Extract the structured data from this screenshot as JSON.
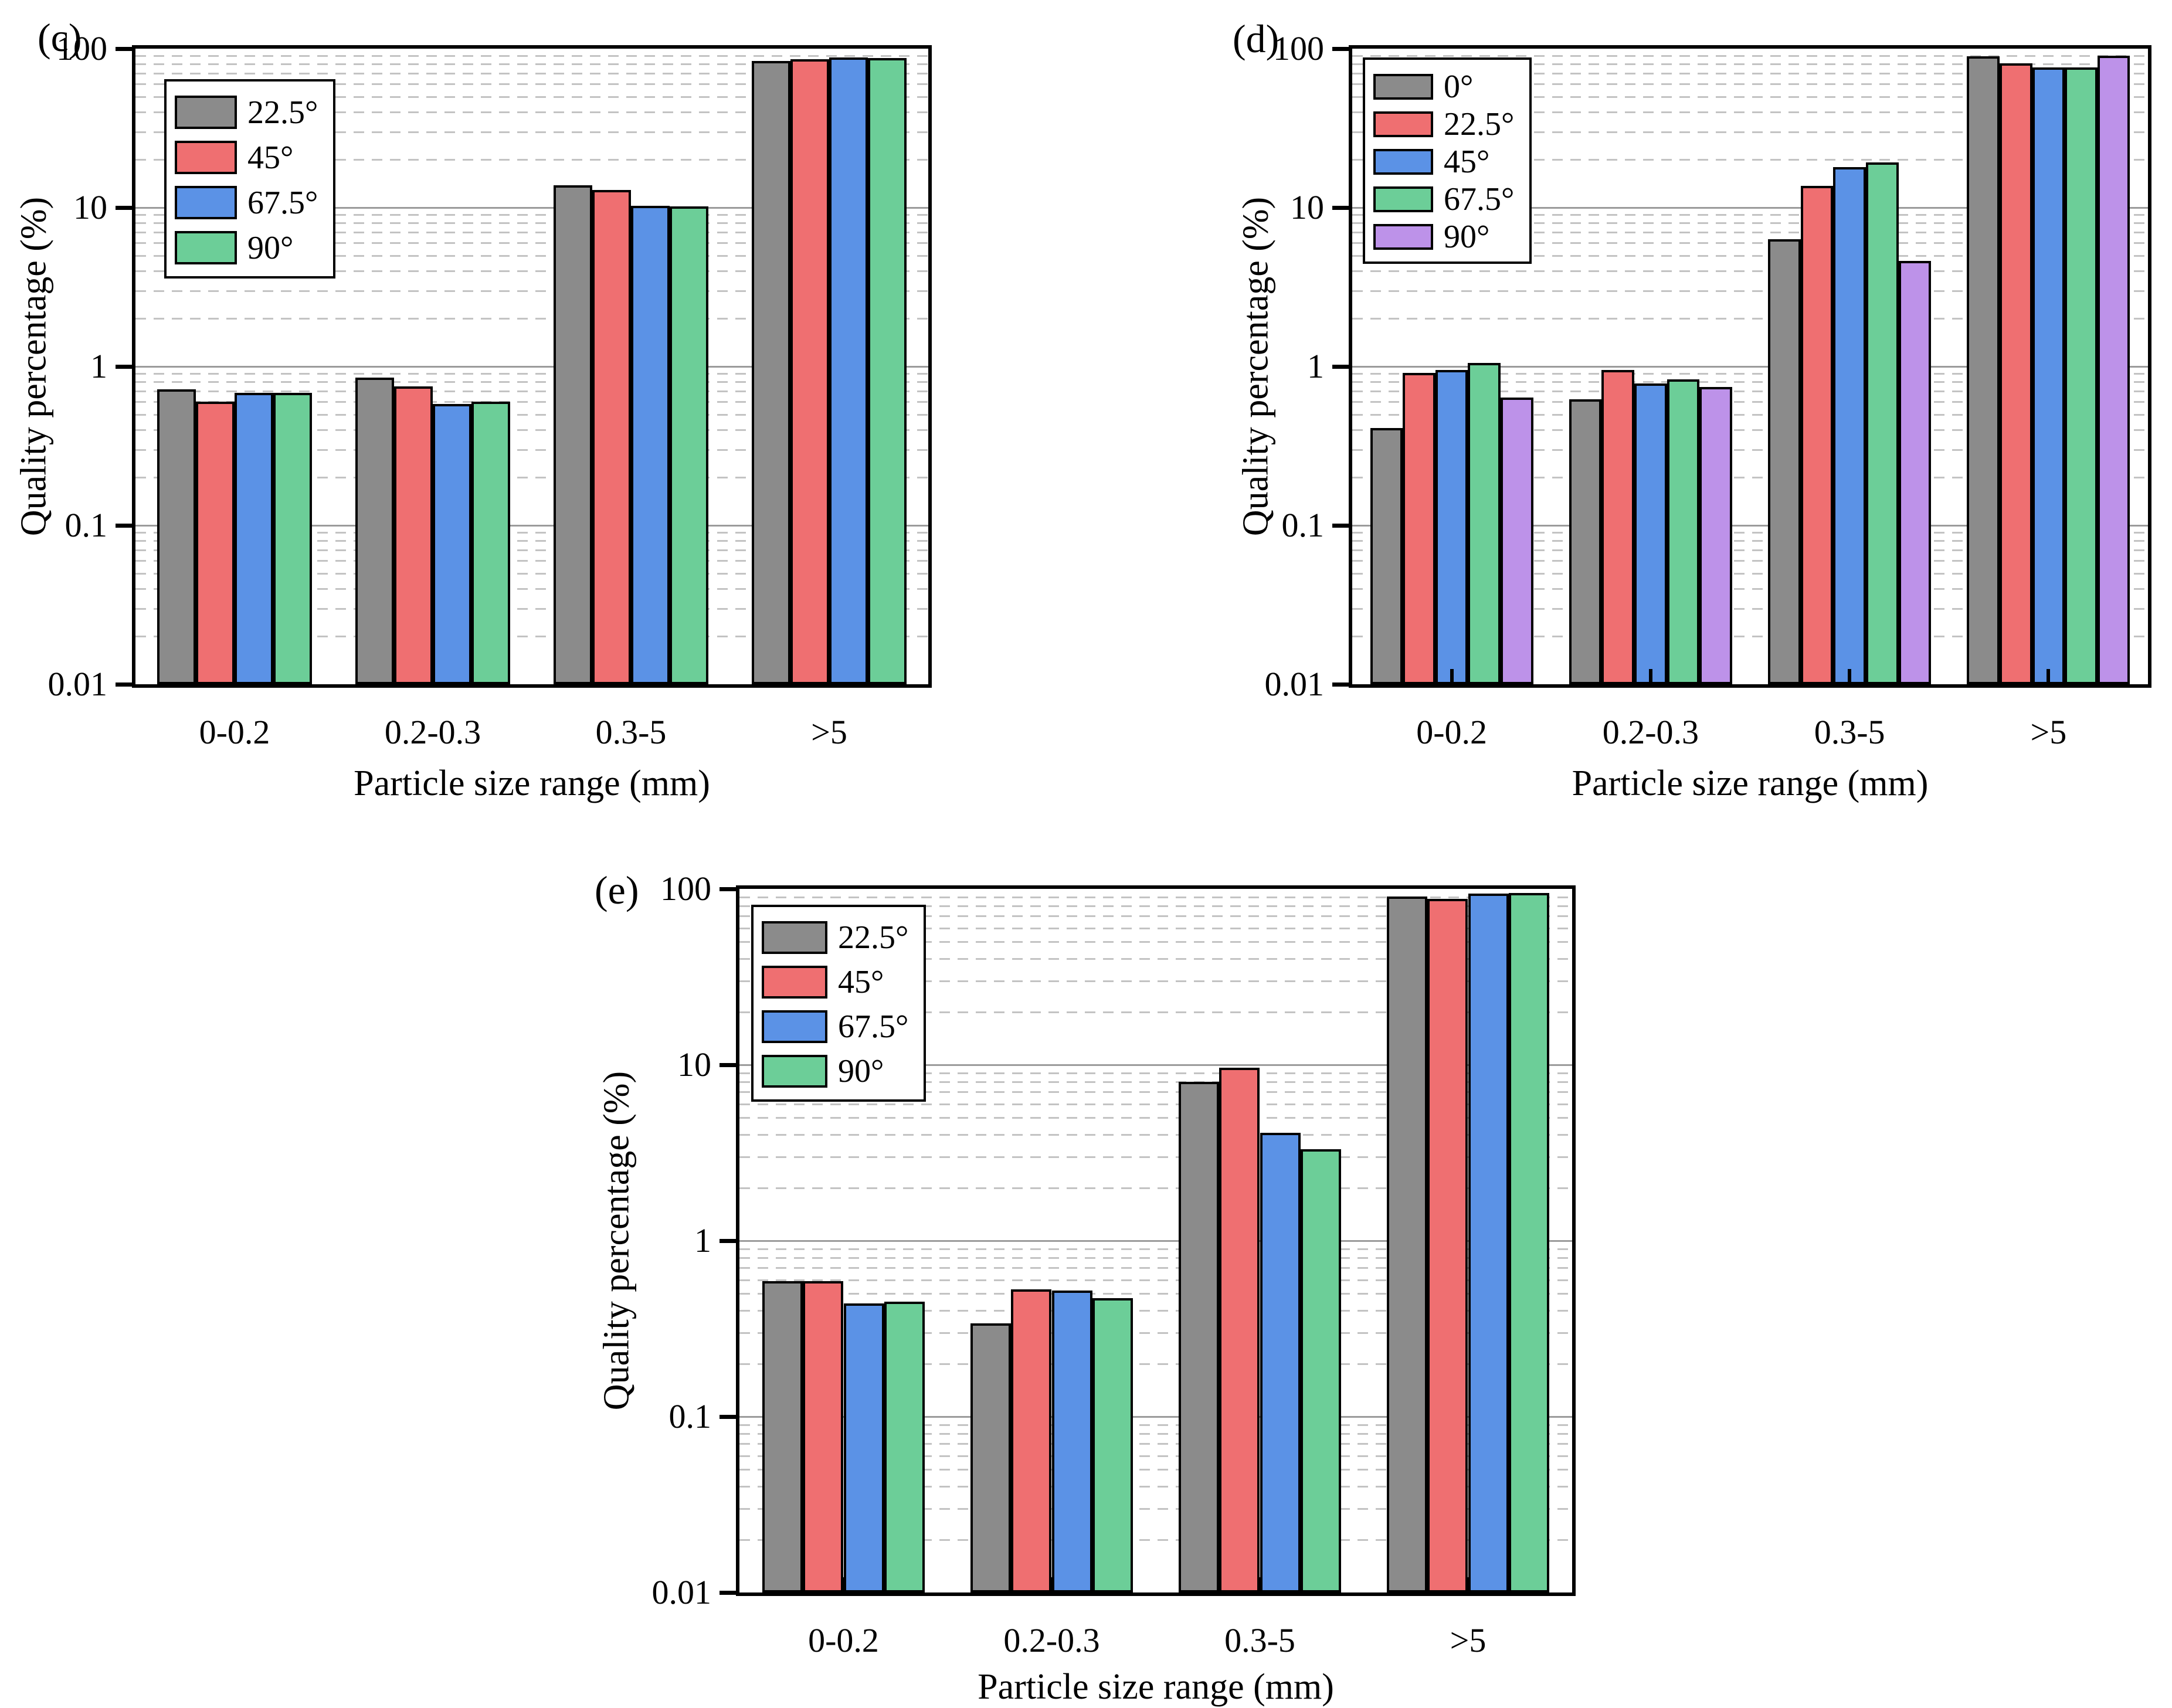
{
  "figure": {
    "background": "#ffffff",
    "ylabel": "Quality percentage (%)",
    "xlabel": "Particle size range (mm)"
  },
  "grid": {
    "major_color": "#9b9b9b",
    "minor_color": "#c3c3c3",
    "minor_style": "dashed"
  },
  "edge_color": "#000000",
  "chart_data": [
    {
      "id": "c",
      "panel_label": "(c)",
      "type": "bar",
      "yscale": "log",
      "ylim": [
        0.01,
        100
      ],
      "ylabel": "Quality percentage (%)",
      "xlabel": "Particle size range (mm)",
      "ytick_labels": [
        "100",
        "10",
        "1",
        "0.1",
        "0.01"
      ],
      "categories": [
        "0-0.2",
        "0.2-0.3",
        "0.3-5",
        ">5"
      ],
      "legend_position": "upper left",
      "grid": true,
      "series": [
        {
          "name": "22.5°",
          "color": "#8b8b8b",
          "values": [
            0.72,
            0.85,
            13.8,
            84
          ]
        },
        {
          "name": "45°",
          "color": "#ef6f71",
          "values": [
            0.6,
            0.75,
            12.9,
            86
          ]
        },
        {
          "name": "67.5°",
          "color": "#5b92e6",
          "values": [
            0.68,
            0.58,
            10.3,
            88
          ]
        },
        {
          "name": "90°",
          "color": "#6cce98",
          "values": [
            0.68,
            0.6,
            10.2,
            87
          ]
        }
      ]
    },
    {
      "id": "d",
      "panel_label": "(d)",
      "type": "bar",
      "yscale": "log",
      "ylim": [
        0.01,
        100
      ],
      "ylabel": "Quality percentage (%)",
      "xlabel": "Particle size range (mm)",
      "ytick_labels": [
        "100",
        "10",
        "1",
        "0.1",
        "0.01"
      ],
      "categories": [
        "0-0.2",
        "0.2-0.3",
        "0.3-5",
        ">5"
      ],
      "legend_position": "upper left",
      "grid": true,
      "series": [
        {
          "name": "0°",
          "color": "#8b8b8b",
          "values": [
            0.41,
            0.62,
            6.3,
            89.5
          ]
        },
        {
          "name": "22.5°",
          "color": "#ef6f71",
          "values": [
            0.91,
            0.95,
            13.7,
            81
          ]
        },
        {
          "name": "45°",
          "color": "#5b92e6",
          "values": [
            0.95,
            0.78,
            18.0,
            76.5
          ]
        },
        {
          "name": "67.5°",
          "color": "#6cce98",
          "values": [
            1.05,
            0.83,
            19.2,
            76
          ]
        },
        {
          "name": "90°",
          "color": "#bd92e9",
          "values": [
            0.64,
            0.74,
            4.6,
            90.5
          ]
        }
      ]
    },
    {
      "id": "e",
      "panel_label": "(e)",
      "type": "bar",
      "yscale": "log",
      "ylim": [
        0.01,
        100
      ],
      "ylabel": "Quality percentage (%)",
      "xlabel": "Particle size range (mm)",
      "ytick_labels": [
        "100",
        "10",
        "1",
        "0.1",
        "0.01"
      ],
      "categories": [
        "0-0.2",
        "0.2-0.3",
        "0.3-5",
        ">5"
      ],
      "legend_position": "upper left",
      "grid": true,
      "series": [
        {
          "name": "22.5°",
          "color": "#8b8b8b",
          "values": [
            0.59,
            0.34,
            8.0,
            90.5
          ]
        },
        {
          "name": "45°",
          "color": "#ef6f71",
          "values": [
            0.59,
            0.53,
            9.6,
            88
          ]
        },
        {
          "name": "67.5°",
          "color": "#5b92e6",
          "values": [
            0.44,
            0.52,
            4.1,
            94
          ]
        },
        {
          "name": "90°",
          "color": "#6cce98",
          "values": [
            0.45,
            0.47,
            3.3,
            94.5
          ]
        }
      ]
    }
  ]
}
